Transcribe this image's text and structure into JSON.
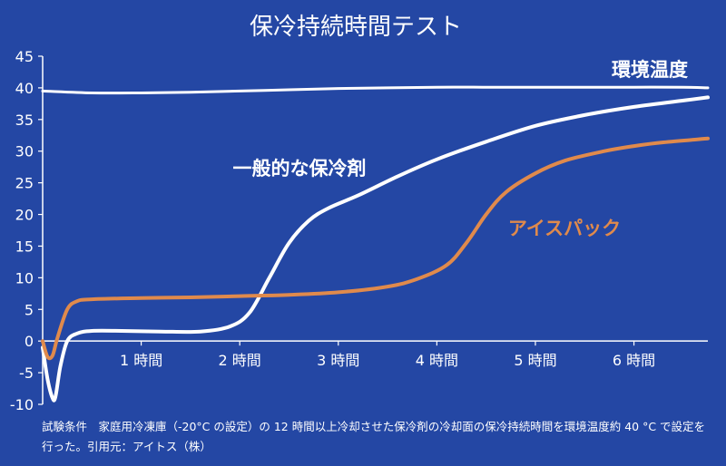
{
  "colors": {
    "background": "#2447a4",
    "axis": "#ffffff",
    "ambient": "#ffffff",
    "general": "#ffffff",
    "icepack": "#e08a4c"
  },
  "caption": "試験条件　家庭用冷凍庫（-20°C の設定）の 12 時間以上冷却させた保冷剤の冷却面の保冷持続時間を環境温度約 40 °C で設定を行った。引用元：アイトス（株）",
  "chart_data": {
    "type": "line",
    "title": "保冷持続時間テスト",
    "xlabel": "",
    "ylabel": "",
    "xlim": [
      0,
      6.75
    ],
    "ylim": [
      -10,
      45
    ],
    "x_ticks": [
      {
        "value": 1,
        "label": "1 時間"
      },
      {
        "value": 2,
        "label": "2 時間"
      },
      {
        "value": 3,
        "label": "3 時間"
      },
      {
        "value": 4,
        "label": "4 時間"
      },
      {
        "value": 5,
        "label": "5 時間"
      },
      {
        "value": 6,
        "label": "6 時間"
      }
    ],
    "y_ticks": [
      45,
      40,
      35,
      30,
      25,
      20,
      15,
      10,
      5,
      0,
      -5,
      -10
    ],
    "grid": false,
    "series": [
      {
        "name": "環境温度",
        "key": "ambient",
        "x": [
          0,
          0.5,
          1,
          1.5,
          2,
          2.5,
          3,
          3.5,
          4,
          4.5,
          5,
          5.5,
          6,
          6.5,
          6.75
        ],
        "y": [
          39.5,
          39.2,
          39.2,
          39.3,
          39.5,
          39.7,
          39.9,
          40.0,
          40.1,
          40.1,
          40.1,
          40.1,
          40.1,
          40.1,
          40.0
        ]
      },
      {
        "name": "一般的な保冷剤",
        "key": "general",
        "x": [
          0,
          0.05,
          0.1,
          0.13,
          0.18,
          0.25,
          0.35,
          0.5,
          0.8,
          1.2,
          1.6,
          1.9,
          2.1,
          2.3,
          2.5,
          2.7,
          2.9,
          3.2,
          3.6,
          4.0,
          4.5,
          5.0,
          5.5,
          6.0,
          6.5,
          6.75
        ],
        "y": [
          -1,
          -6,
          -9,
          -8.8,
          -4,
          0,
          1.2,
          1.6,
          1.6,
          1.5,
          1.5,
          2.3,
          4.5,
          10,
          15.5,
          19,
          21,
          23,
          26,
          28.7,
          31.5,
          34,
          35.7,
          37,
          38,
          38.5
        ]
      },
      {
        "name": "アイスパック",
        "key": "icepack",
        "x": [
          0,
          0.05,
          0.1,
          0.15,
          0.25,
          0.35,
          0.5,
          1,
          1.5,
          2,
          2.5,
          3,
          3.5,
          3.8,
          4.1,
          4.3,
          4.5,
          4.7,
          5.0,
          5.3,
          5.7,
          6.0,
          6.3,
          6.75
        ],
        "y": [
          0,
          -2.5,
          -2.3,
          0.5,
          5,
          6.3,
          6.6,
          6.8,
          6.9,
          7.1,
          7.3,
          7.7,
          8.6,
          9.8,
          12,
          15.5,
          20,
          23.5,
          26.5,
          28.5,
          30,
          30.8,
          31.4,
          32
        ]
      }
    ],
    "annotations": [
      {
        "series": "ambient",
        "text": "環境温度"
      },
      {
        "series": "general",
        "text": "一般的な保冷剤"
      },
      {
        "series": "icepack",
        "text": "アイスパック"
      }
    ]
  }
}
